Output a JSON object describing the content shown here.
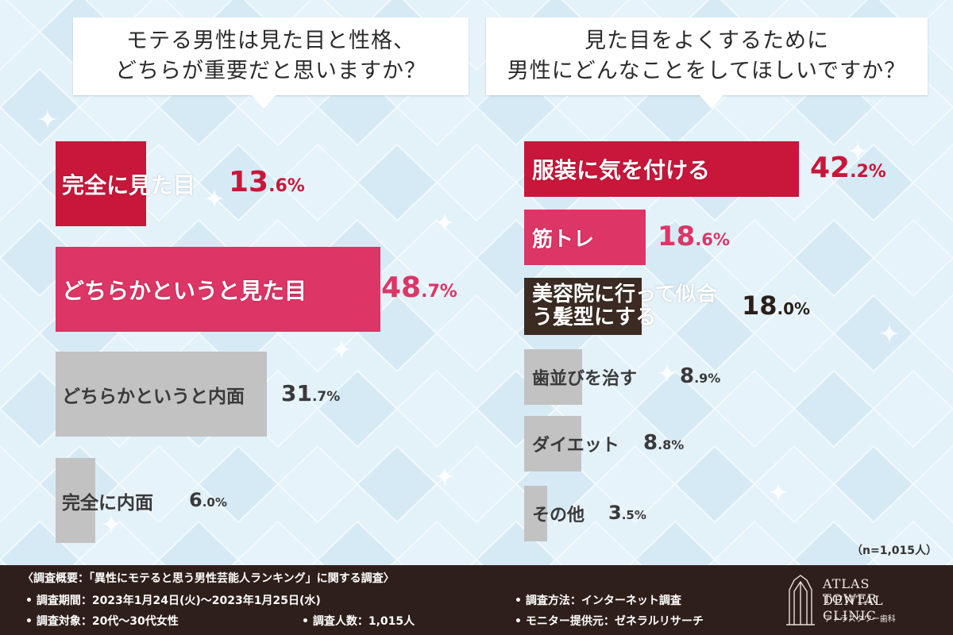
{
  "left_question": {
    "line1": "モテる男性は見た目と性格、",
    "line2": "どちらが重要だと思いますか？"
  },
  "right_question": {
    "line1": "見た目をよくするために",
    "line2": "男性にどんなことをしてほしいですか？"
  },
  "chart_data": [
    {
      "type": "bar",
      "title": "モテる男性は見た目と性格、どちらが重要だと思いますか？",
      "categories": [
        "完全に見た目",
        "どちらかというと見た目",
        "どちらかというと内面",
        "完全に内面"
      ],
      "values": [
        13.6,
        48.7,
        31.7,
        6.0
      ],
      "value_labels": [
        "13.6%",
        "48.7%",
        "31.7%",
        "6.0%"
      ],
      "colors": [
        "#c8173a",
        "#dc3566",
        "#c2c2c2",
        "#c2c2c2"
      ]
    },
    {
      "type": "bar",
      "title": "見た目をよくするために男性にどんなことをしてほしいですか？",
      "categories": [
        "服装に気を付ける",
        "筋トレ",
        "美容院に行って似合う髪型にする",
        "歯並びを治す",
        "ダイエット",
        "その他"
      ],
      "values": [
        42.2,
        18.6,
        18.0,
        8.9,
        8.8,
        3.5
      ],
      "value_labels": [
        "42.2%",
        "18.6%",
        "18.0%",
        "8.9%",
        "8.8%",
        "3.5%"
      ],
      "colors": [
        "#c8173a",
        "#dc3566",
        "#3b2b22",
        "#c2c2c2",
        "#c2c2c2",
        "#c2c2c2"
      ]
    }
  ],
  "sample_note": "（n=1,015人）",
  "footer": {
    "overview": "〈調査概要：「異性にモテると思う男性芸能人ランキング」に関する調査〉",
    "period": "• 調査期間：2023年1月24日(火)〜2023年1月25日(水)",
    "method": "• 調査方法：インターネット調査",
    "target": "• 調査対象：20代〜30代女性",
    "count": "• 調査人数：1,015人",
    "provider": "• モニター提供元：ゼネラルリサーチ",
    "clinic_name_1": "ATLAS TOWER",
    "clinic_name_2": "DENTAL CLINIC",
    "clinic_kana": "アトラスタワー歯科"
  }
}
